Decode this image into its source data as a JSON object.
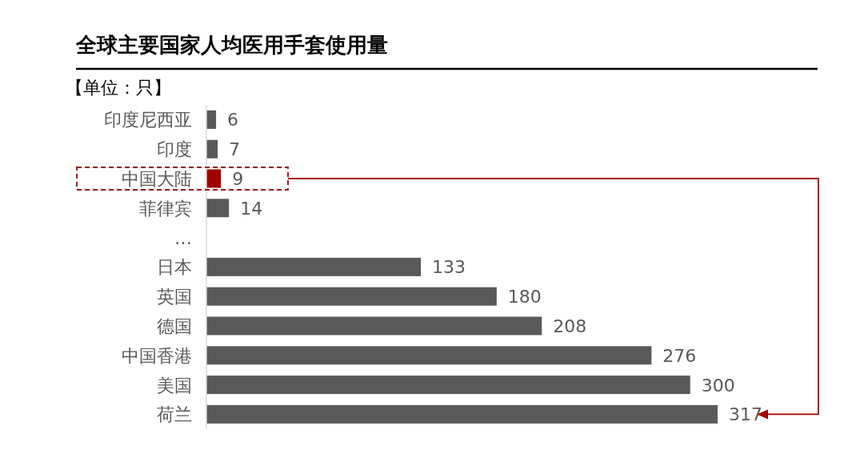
{
  "chart_data": {
    "type": "bar",
    "orientation": "horizontal",
    "title": "全球主要国家人均医用手套使用量",
    "annotations": [
      "【单位：只】"
    ],
    "categories": [
      "印度尼西亚",
      "印度",
      "中国大陆",
      "菲律宾",
      "…",
      "日本",
      "英国",
      "德国",
      "中国香港",
      "美国",
      "荷兰"
    ],
    "values": [
      6,
      7,
      9,
      14,
      null,
      133,
      180,
      208,
      276,
      300,
      317
    ],
    "colors": [
      "#595959",
      "#595959",
      "#a00000",
      "#595959",
      null,
      "#595959",
      "#595959",
      "#595959",
      "#595959",
      "#595959",
      "#595959"
    ],
    "data_labels": true
  }
}
